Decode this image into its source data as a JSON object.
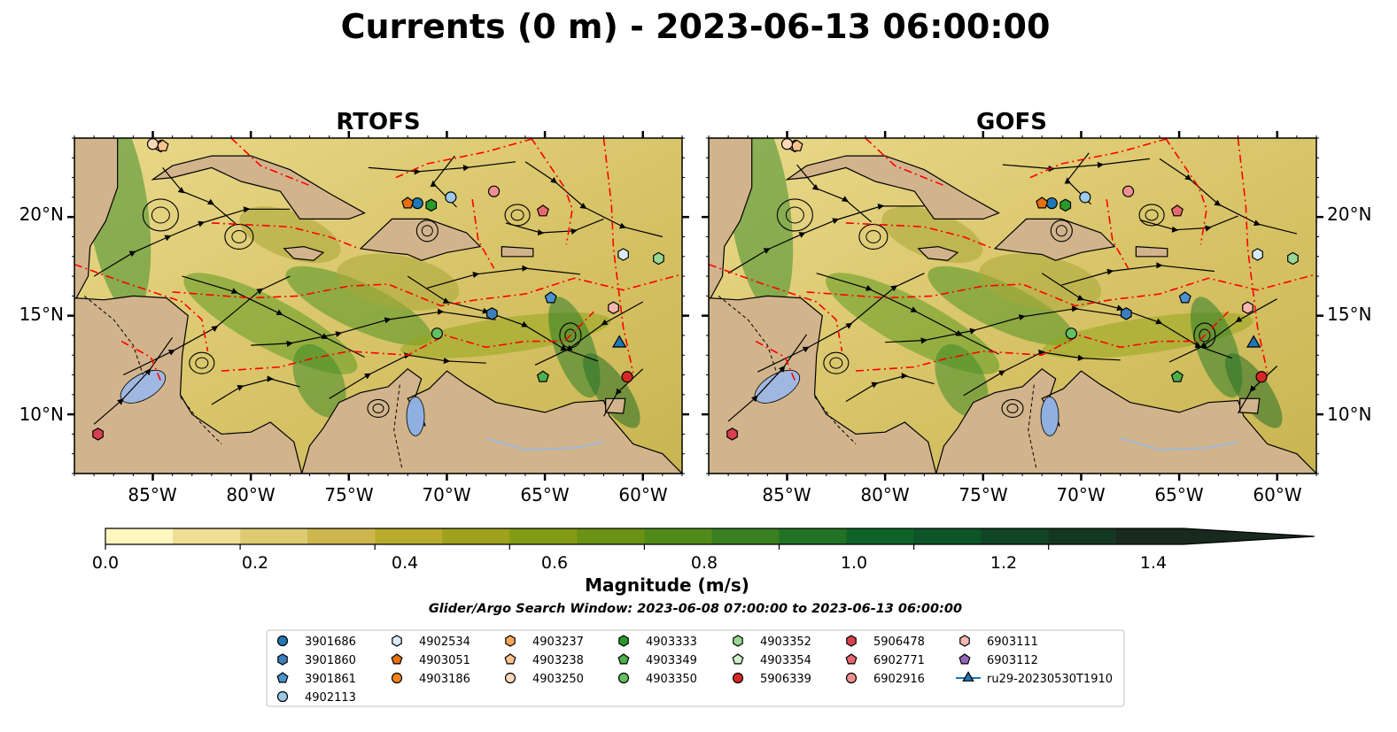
{
  "figure": {
    "title": "Currents (0 m) - 2023-06-13 06:00:00",
    "panels": [
      {
        "id": "rtofs",
        "title": "RTOFS"
      },
      {
        "id": "gofs",
        "title": "GOFS"
      }
    ],
    "lon_ticks": [
      "85°W",
      "80°W",
      "75°W",
      "70°W",
      "65°W",
      "60°W"
    ],
    "lat_ticks": [
      "20°N",
      "15°N",
      "10°N"
    ],
    "extent": {
      "lon_min": -89,
      "lon_max": -58,
      "lat_min": 7,
      "lat_max": 24
    },
    "colors": {
      "land": "#d2b48c",
      "eez_boundary": "#ff0000",
      "lake": "#8fb0e0",
      "river": "#a0b8d8"
    }
  },
  "colorbar": {
    "label": "Magnitude (m/s)",
    "ticks": [
      "0.0",
      "0.2",
      "0.4",
      "0.6",
      "0.8",
      "1.0",
      "1.2",
      "1.4"
    ],
    "min": 0.0,
    "max": 1.6,
    "extend": "max",
    "colors": [
      "#fff6c0",
      "#efdf95",
      "#decb71",
      "#cdb64d",
      "#b8ab2e",
      "#9ea11c",
      "#839b12",
      "#6a9214",
      "#528a1a",
      "#3a7f20",
      "#217225",
      "#106328",
      "#0d5428",
      "#104525",
      "#143721",
      "#182a1d"
    ]
  },
  "search_window": "Glider/Argo Search Window: 2023-06-08 07:00:00 to 2023-06-13 06:00:00",
  "legend": {
    "items": [
      {
        "label": "3901686",
        "marker": "circle",
        "color": "#1f77b4"
      },
      {
        "label": "3901860",
        "marker": "hexagon",
        "color": "#3b7fc0"
      },
      {
        "label": "3901861",
        "marker": "pentagon",
        "color": "#4a92d0"
      },
      {
        "label": "4902113",
        "marker": "circle",
        "color": "#9ecae9"
      },
      {
        "label": "4902534",
        "marker": "hexagon",
        "color": "#d8ebf8"
      },
      {
        "label": "4903051",
        "marker": "pentagon",
        "color": "#e6700a"
      },
      {
        "label": "4903186",
        "marker": "circle",
        "color": "#f58518"
      },
      {
        "label": "4903237",
        "marker": "hexagon",
        "color": "#f6a85a"
      },
      {
        "label": "4903238",
        "marker": "pentagon",
        "color": "#fbc38f"
      },
      {
        "label": "4903250",
        "marker": "circle",
        "color": "#fdd8b8"
      },
      {
        "label": "4903333",
        "marker": "hexagon",
        "color": "#2a9a2a"
      },
      {
        "label": "4903349",
        "marker": "pentagon",
        "color": "#4cb04c"
      },
      {
        "label": "4903350",
        "marker": "circle",
        "color": "#62c062"
      },
      {
        "label": "4903352",
        "marker": "hexagon",
        "color": "#98d894"
      },
      {
        "label": "4903354",
        "marker": "pentagon",
        "color": "#d0f0cc"
      },
      {
        "label": "5906339",
        "marker": "circle",
        "color": "#d62728"
      },
      {
        "label": "5906478",
        "marker": "hexagon",
        "color": "#d84050"
      },
      {
        "label": "6902771",
        "marker": "pentagon",
        "color": "#e86870"
      },
      {
        "label": "6902916",
        "marker": "circle",
        "color": "#f09090"
      },
      {
        "label": "6903111",
        "marker": "hexagon",
        "color": "#f5b8b0"
      },
      {
        "label": "6903112",
        "marker": "pentagon",
        "color": "#9467bd"
      },
      {
        "label": "ru29-20230530T1910",
        "marker": "triangle-line",
        "color": "#1f77b4"
      }
    ]
  },
  "observations": [
    {
      "id": "3901686",
      "lon": -71.5,
      "lat": 20.7
    },
    {
      "id": "3901860",
      "lon": -67.7,
      "lat": 15.1
    },
    {
      "id": "3901861",
      "lon": -64.7,
      "lat": 15.9
    },
    {
      "id": "4902113",
      "lon": -69.8,
      "lat": 21.0
    },
    {
      "id": "4902534",
      "lon": -61.0,
      "lat": 18.1
    },
    {
      "id": "4903051",
      "lon": -72.0,
      "lat": 20.7
    },
    {
      "id": "4903237",
      "lon": -84.6,
      "lat": 23.6
    },
    {
      "id": "4903238",
      "lon": -84.5,
      "lat": 23.6
    },
    {
      "id": "4903250",
      "lon": -85.0,
      "lat": 23.7
    },
    {
      "id": "4903333",
      "lon": -70.8,
      "lat": 20.6
    },
    {
      "id": "4903349",
      "lon": -65.1,
      "lat": 11.9
    },
    {
      "id": "4903350",
      "lon": -70.5,
      "lat": 14.1
    },
    {
      "id": "4903352",
      "lon": -59.2,
      "lat": 17.9
    },
    {
      "id": "5906339",
      "lon": -60.8,
      "lat": 11.9
    },
    {
      "id": "5906478",
      "lon": -87.8,
      "lat": 9.0
    },
    {
      "id": "6902771",
      "lon": -65.1,
      "lat": 20.3
    },
    {
      "id": "6902916",
      "lon": -67.6,
      "lat": 21.3
    },
    {
      "id": "6903111",
      "lon": -61.5,
      "lat": 15.4
    },
    {
      "id": "ru29-20230530T1910",
      "lon": -61.2,
      "lat": 13.6
    }
  ]
}
